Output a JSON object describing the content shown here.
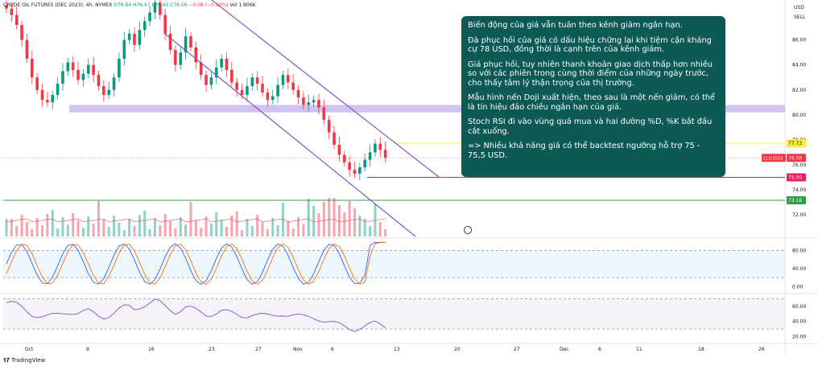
{
  "legend": {
    "symbol": "CRUDE OIL FUTURES (DEC 2023), 4h, NYMEX",
    "o": "O76.64",
    "h": "H76.67",
    "l": "L76.43",
    "c": "C76.56",
    "chg": "−0.08 (−0.10%)",
    "vol": "Vol 1.906K"
  },
  "top_right": {
    "currency": "USD",
    "sell": "SELL"
  },
  "annotation": [
    "Biến động của giá vẫn tuân theo kênh giảm ngắn hạn.",
    "Đà phục hồi của giá có dấu hiệu chững lại khi tiệm cận kháng cự 78 USD, đồng thời là cạnh trên của kênh giảm.",
    "Giá phục hồi, tuy nhiên thanh khoản giao dịch thấp hơn nhiều so với các phiên trong cùng thời điểm của những ngày trước, cho thấy tâm lý thận trọng của thị trường.",
    "Mẫu hình nến Doji xuất hiện, theo sau là một nến giảm, có thể là tín hiệu đảo chiều ngắn hạn của giá.",
    "Stoch RSI đi vào vùng quá mua và hai đường %D, %K bắt đầu cắt xuống.",
    "=> Nhiều khả năng giá có thể backtest ngưỡng hỗ trợ 75 - 75,5 USD."
  ],
  "brand": "TradingView",
  "colors": {
    "up": "#089981",
    "down": "#f23645",
    "channel": "#7e57c2",
    "zone": "#c9b8ef",
    "resistance": "#ffeb3b",
    "support_red": "#e91e63",
    "support_green": "#2e9e44",
    "k_line": "#2962ff",
    "d_line": "#ff6d00",
    "rsi_line": "#7e57c2"
  },
  "chart_data": {
    "type": "candlestick",
    "timeframe": "4h",
    "price_axis": {
      "range": [
        70.2,
        89.2
      ],
      "ticks": [
        "86.00",
        "84.00",
        "82.00",
        "80.00",
        "78.00",
        "76.00",
        "74.00",
        "72.00"
      ]
    },
    "x_axis": {
      "ticks": [
        "Oct",
        "9",
        "16",
        "23",
        "27",
        "Nov",
        "6",
        "13",
        "20",
        "27",
        "Dec",
        "6",
        "11",
        "18",
        "26"
      ]
    },
    "price_labels": [
      {
        "value": 77.73,
        "label": "77.73",
        "role": "resistance"
      },
      {
        "value": 76.56,
        "label": "76.56",
        "role": "last",
        "tag": "CL1!2023"
      },
      {
        "value": 75.0,
        "label": "75.00",
        "role": "support"
      },
      {
        "value": 73.16,
        "label": "73.16",
        "role": "support"
      }
    ],
    "zone": {
      "from": 80.2,
      "to": 80.8
    },
    "channel": {
      "upper": [
        [
          "Oct 19",
          89.4
        ],
        [
          "Nov 17",
          75.4
        ]
      ],
      "lower": [
        [
          "Oct 12",
          85.6
        ],
        [
          "Nov 14",
          70.3
        ]
      ]
    },
    "close_path": [
      88.5,
      88.0,
      87.2,
      86.0,
      84.5,
      83.0,
      82.0,
      81.2,
      81.0,
      81.6,
      82.5,
      83.5,
      84.2,
      83.6,
      82.8,
      83.3,
      84.0,
      83.2,
      82.3,
      81.6,
      82.0,
      83.0,
      84.5,
      86.0,
      86.5,
      85.6,
      86.8,
      87.5,
      88.2,
      89.0,
      88.0,
      86.5,
      85.2,
      84.0,
      85.0,
      86.3,
      85.4,
      84.2,
      83.2,
      82.4,
      83.0,
      83.8,
      84.5,
      83.6,
      82.6,
      82.0,
      81.6,
      82.3,
      83.0,
      82.5,
      81.8,
      81.2,
      81.5,
      82.4,
      83.2,
      82.6,
      82.0,
      81.4,
      80.8,
      81.0,
      81.2,
      80.6,
      79.6,
      78.6,
      77.6,
      76.8,
      76.2,
      75.6,
      75.3,
      75.8,
      76.4,
      77.0,
      77.7,
      77.2,
      76.56
    ],
    "stoch_rsi": {
      "range": [
        -10,
        104
      ],
      "ticks": [
        "80.00",
        "40.00",
        "0.00"
      ],
      "levels": [
        80,
        20
      ]
    },
    "rsi": {
      "range": [
        13,
        75
      ],
      "ticks": [
        "60.00",
        "40.00",
        "20.00"
      ],
      "levels": [
        70,
        30
      ]
    }
  }
}
